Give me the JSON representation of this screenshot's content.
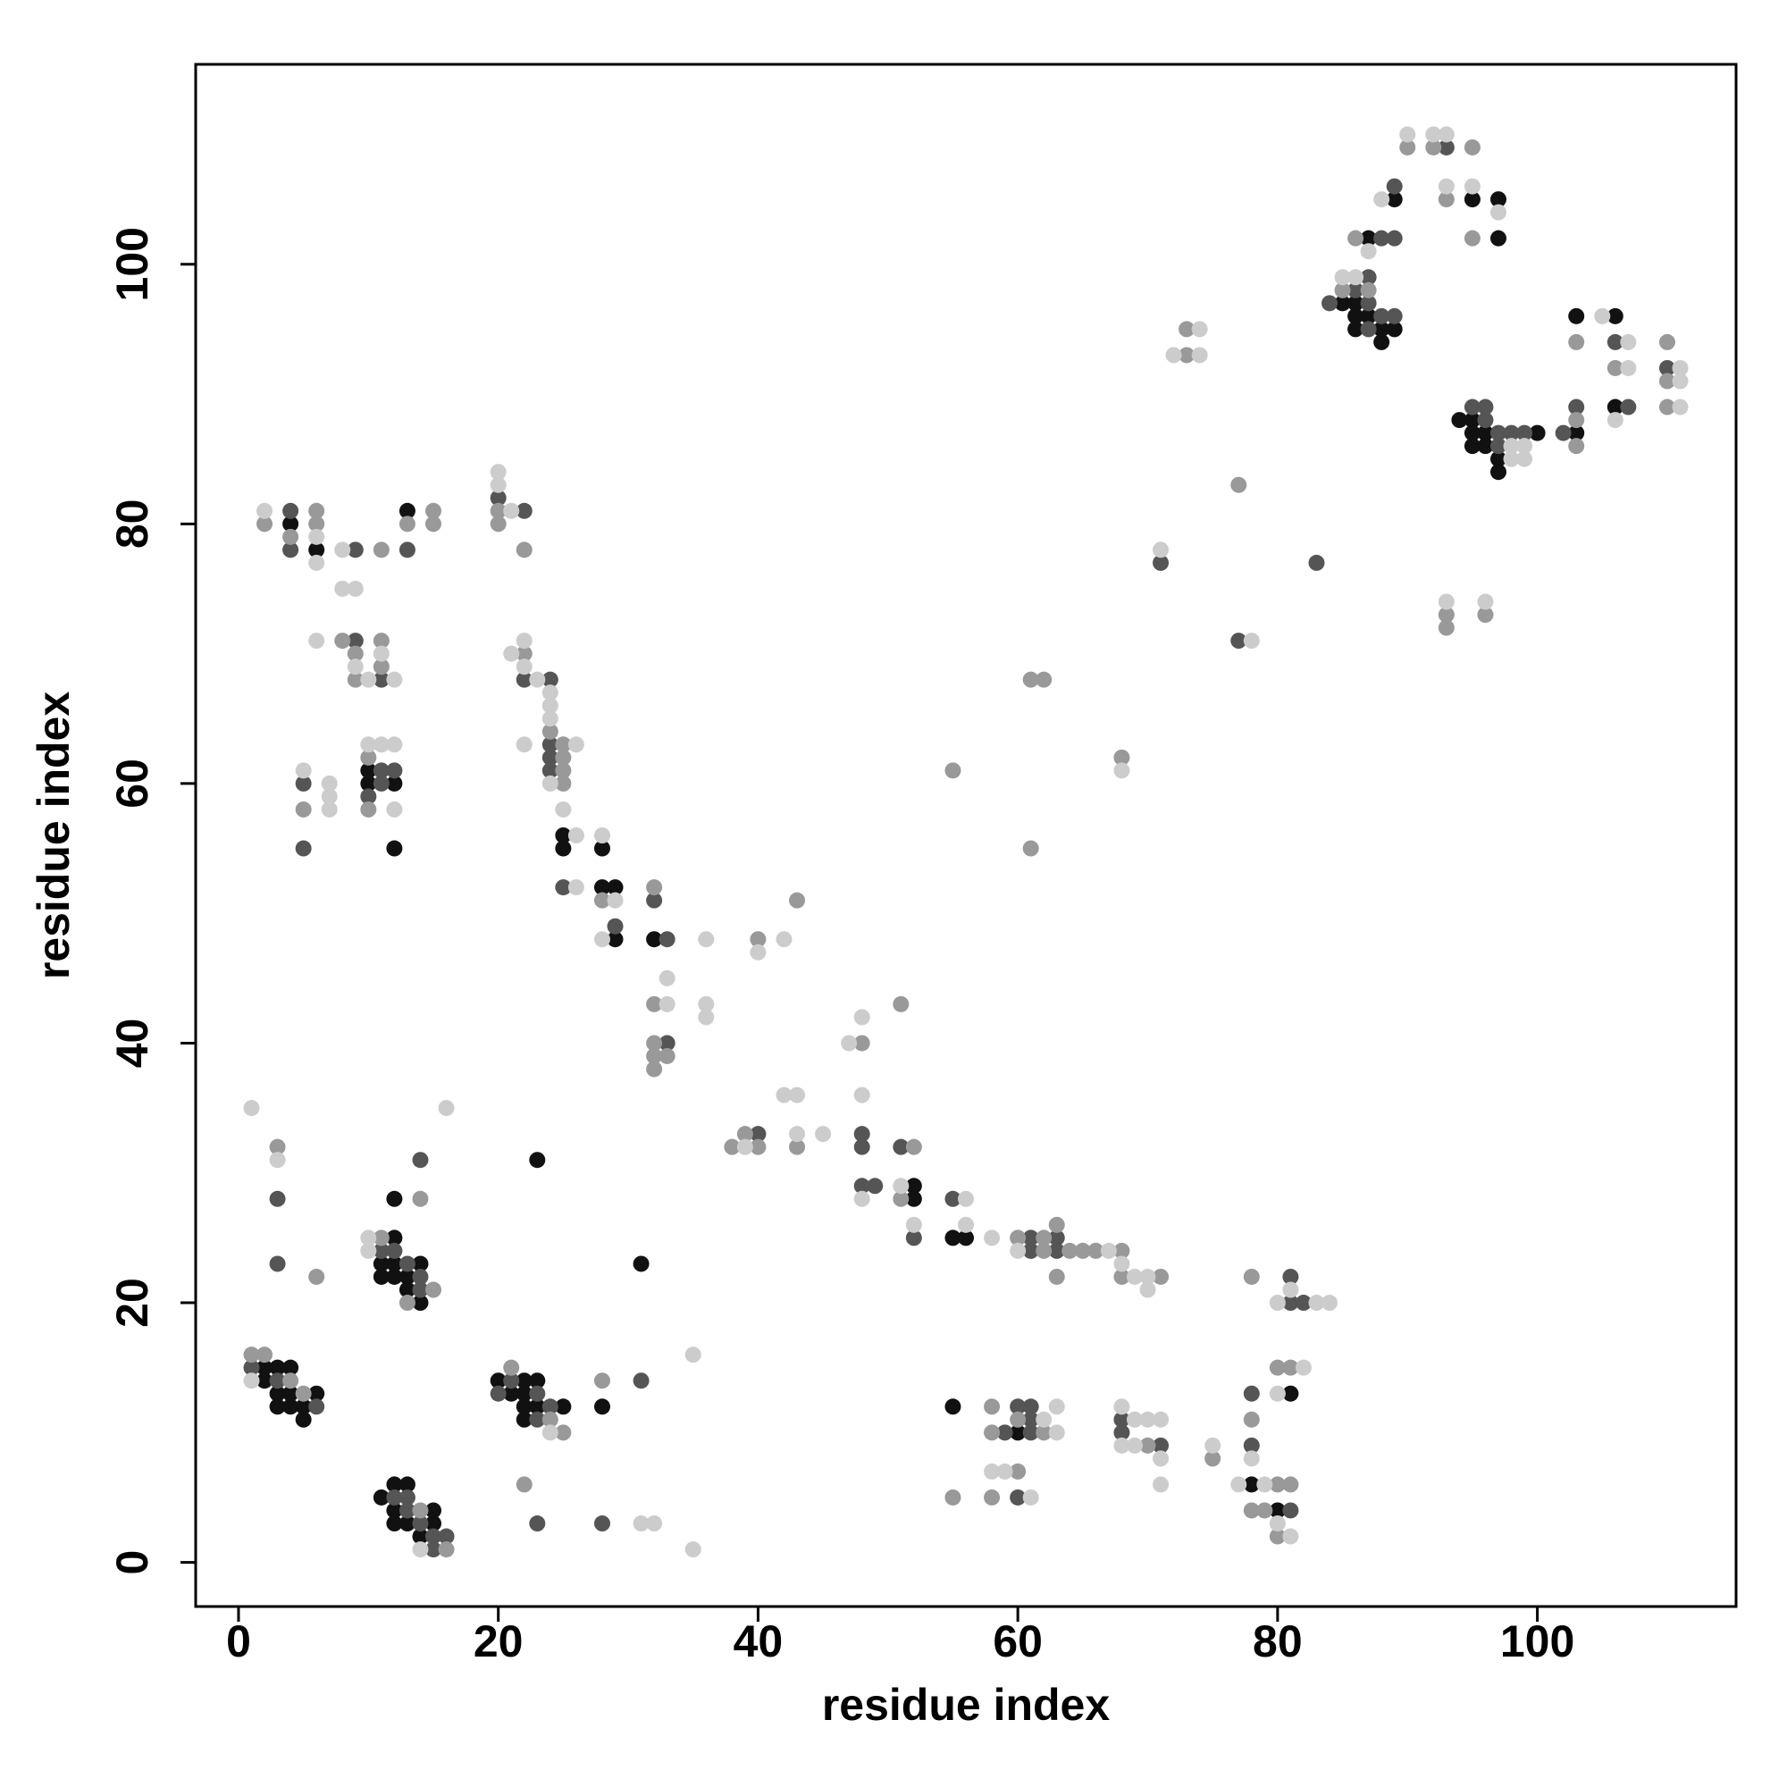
{
  "chart_data": {
    "type": "scatter",
    "x_label": "residue index",
    "y_label": "residue index",
    "xlim": [
      -3.3,
      115.3
    ],
    "ylim": [
      -3.4,
      115.4
    ],
    "xticks": [
      0,
      20,
      40,
      60,
      80,
      100
    ],
    "yticks": [
      0,
      20,
      40,
      60,
      80,
      100
    ],
    "grid": false,
    "series": [
      {
        "color": "#111111",
        "x": [
          2,
          2,
          3,
          4,
          3,
          4,
          6,
          3,
          4,
          5,
          5,
          11,
          12,
          13,
          12,
          15,
          12,
          13,
          15,
          14,
          12,
          11,
          12,
          14,
          11,
          12,
          13,
          13,
          14,
          12,
          20,
          22,
          23,
          21,
          22,
          22,
          23,
          25,
          22,
          23,
          28,
          31,
          4,
          6,
          13,
          10,
          10,
          12,
          12,
          25,
          25,
          28,
          28,
          29,
          29,
          32,
          52,
          52,
          55,
          56,
          81,
          78,
          80,
          55,
          60,
          85,
          86,
          86,
          87,
          86,
          88,
          89,
          88,
          87,
          89,
          95,
          97,
          97,
          94,
          95,
          95,
          96,
          95,
          96,
          100,
          97,
          97,
          103,
          103,
          106,
          106
        ],
        "y": [
          15,
          14,
          15,
          15,
          13,
          13,
          13,
          12,
          12,
          12,
          11,
          5,
          6,
          6,
          4,
          4,
          3,
          3,
          3,
          2,
          25,
          23,
          23,
          23,
          22,
          22,
          22,
          21,
          20,
          28,
          14,
          14,
          14,
          13,
          13,
          12,
          12,
          12,
          11,
          31,
          12,
          23,
          80,
          78,
          81,
          61,
          60,
          60,
          55,
          56,
          55,
          55,
          52,
          52,
          48,
          48,
          29,
          28,
          25,
          25,
          13,
          6,
          4,
          12,
          10,
          97,
          97,
          96,
          96,
          95,
          95,
          95,
          94,
          102,
          105,
          105,
          105,
          102,
          88,
          88,
          87,
          87,
          86,
          86,
          87,
          85,
          84,
          87,
          96,
          96,
          89
        ]
      },
      {
        "color": "#555555",
        "x": [
          1,
          3,
          6,
          12,
          13,
          13,
          14,
          15,
          16,
          15,
          11,
          12,
          13,
          14,
          14,
          14,
          3,
          3,
          21,
          20,
          23,
          24,
          23,
          23,
          28,
          31,
          4,
          4,
          9,
          13,
          9,
          11,
          5,
          5,
          11,
          12,
          11,
          10,
          20,
          22,
          22,
          24,
          24,
          24,
          24,
          25,
          29,
          32,
          33,
          33,
          40,
          48,
          48,
          48,
          49,
          51,
          52,
          55,
          61,
          61,
          63,
          63,
          81,
          81,
          82,
          78,
          78,
          68,
          68,
          71,
          81,
          60,
          61,
          59,
          61,
          61,
          60,
          71,
          77,
          83,
          84,
          87,
          86,
          87,
          88,
          89,
          87,
          88,
          89,
          89,
          93,
          95,
          96,
          96,
          97,
          98,
          99,
          97,
          102,
          103,
          106,
          107,
          110
        ],
        "y": [
          15,
          14,
          12,
          5,
          5,
          4,
          3,
          2,
          2,
          1,
          24,
          24,
          23,
          22,
          21,
          31,
          28,
          23,
          14,
          13,
          13,
          12,
          11,
          3,
          3,
          14,
          81,
          78,
          78,
          78,
          71,
          68,
          60,
          55,
          61,
          61,
          60,
          59,
          82,
          81,
          68,
          68,
          63,
          62,
          61,
          52,
          49,
          51,
          48,
          40,
          33,
          33,
          32,
          29,
          29,
          32,
          25,
          28,
          25,
          24,
          25,
          24,
          22,
          20,
          20,
          13,
          9,
          11,
          10,
          9,
          4,
          12,
          12,
          10,
          10,
          11,
          5,
          77,
          71,
          77,
          97,
          99,
          98,
          97,
          96,
          96,
          95,
          102,
          102,
          106,
          109,
          89,
          89,
          88,
          87,
          87,
          87,
          86,
          87,
          89,
          94,
          89,
          92
        ]
      },
      {
        "color": "#999999",
        "x": [
          1,
          2,
          4,
          5,
          14,
          16,
          11,
          15,
          13,
          14,
          3,
          6,
          21,
          24,
          25,
          22,
          28,
          2,
          4,
          6,
          6,
          11,
          13,
          15,
          15,
          8,
          9,
          9,
          11,
          11,
          5,
          10,
          10,
          20,
          20,
          22,
          22,
          24,
          25,
          25,
          25,
          25,
          28,
          32,
          32,
          32,
          32,
          33,
          32,
          40,
          43,
          38,
          39,
          40,
          43,
          48,
          51,
          52,
          51,
          60,
          62,
          62,
          63,
          64,
          65,
          66,
          68,
          63,
          68,
          71,
          78,
          80,
          81,
          78,
          75,
          70,
          80,
          81,
          78,
          79,
          80,
          58,
          58,
          62,
          60,
          60,
          55,
          58,
          55,
          61,
          62,
          61,
          68,
          73,
          73,
          77,
          85,
          87,
          86,
          90,
          92,
          95,
          93,
          95,
          103,
          103,
          103,
          106,
          110,
          110,
          110,
          93,
          93,
          96
        ],
        "y": [
          16,
          16,
          14,
          13,
          4,
          1,
          25,
          21,
          20,
          28,
          32,
          22,
          15,
          11,
          10,
          6,
          14,
          80,
          79,
          81,
          80,
          78,
          80,
          81,
          80,
          71,
          70,
          68,
          71,
          69,
          58,
          62,
          58,
          81,
          80,
          78,
          70,
          64,
          63,
          62,
          61,
          60,
          51,
          52,
          43,
          40,
          39,
          39,
          38,
          48,
          51,
          32,
          33,
          32,
          32,
          40,
          43,
          32,
          28,
          25,
          25,
          24,
          26,
          24,
          24,
          24,
          24,
          22,
          22,
          22,
          22,
          15,
          15,
          11,
          8,
          9,
          6,
          6,
          4,
          4,
          2,
          12,
          10,
          10,
          11,
          7,
          5,
          5,
          61,
          68,
          68,
          55,
          62,
          93,
          95,
          83,
          98,
          98,
          102,
          109,
          109,
          109,
          105,
          102,
          88,
          86,
          94,
          92,
          94,
          91,
          89,
          73,
          72,
          73
        ]
      },
      {
        "color": "#cccccc",
        "x": [
          1,
          14,
          10,
          10,
          16,
          1,
          3,
          24,
          31,
          32,
          35,
          35,
          2,
          6,
          6,
          8,
          8,
          9,
          6,
          9,
          10,
          11,
          12,
          5,
          7,
          7,
          7,
          10,
          11,
          12,
          12,
          20,
          20,
          21,
          21,
          22,
          22,
          23,
          24,
          24,
          24,
          26,
          22,
          24,
          25,
          26,
          26,
          28,
          29,
          28,
          33,
          33,
          36,
          36,
          36,
          40,
          42,
          39,
          42,
          43,
          43,
          45,
          47,
          48,
          48,
          48,
          51,
          52,
          56,
          56,
          58,
          60,
          67,
          68,
          69,
          70,
          70,
          80,
          81,
          83,
          84,
          82,
          80,
          78,
          75,
          68,
          69,
          70,
          71,
          68,
          69,
          71,
          71,
          77,
          79,
          80,
          81,
          63,
          63,
          62,
          58,
          59,
          61,
          68,
          71,
          72,
          74,
          74,
          78,
          85,
          86,
          87,
          88,
          90,
          92,
          93,
          93,
          95,
          97,
          98,
          99,
          98,
          99,
          105,
          107,
          107,
          106,
          111,
          111,
          111,
          93,
          96
        ],
        "y": [
          14,
          1,
          25,
          24,
          35,
          35,
          31,
          10,
          3,
          3,
          1,
          16,
          81,
          79,
          77,
          78,
          75,
          75,
          71,
          69,
          68,
          70,
          68,
          61,
          60,
          59,
          58,
          63,
          63,
          63,
          58,
          84,
          83,
          81,
          70,
          71,
          69,
          68,
          67,
          66,
          65,
          63,
          63,
          60,
          58,
          56,
          52,
          56,
          51,
          48,
          45,
          43,
          48,
          43,
          42,
          47,
          48,
          32,
          36,
          36,
          33,
          33,
          40,
          42,
          36,
          28,
          29,
          26,
          28,
          26,
          25,
          24,
          24,
          23,
          22,
          22,
          21,
          20,
          21,
          20,
          20,
          15,
          13,
          8,
          9,
          12,
          11,
          11,
          11,
          9,
          9,
          8,
          6,
          6,
          6,
          3,
          2,
          12,
          10,
          11,
          7,
          7,
          5,
          61,
          78,
          93,
          95,
          93,
          71,
          99,
          99,
          101,
          105,
          110,
          110,
          110,
          106,
          106,
          104,
          86,
          86,
          85,
          85,
          96,
          94,
          92,
          88,
          92,
          91,
          89,
          74,
          74
        ]
      }
    ]
  }
}
